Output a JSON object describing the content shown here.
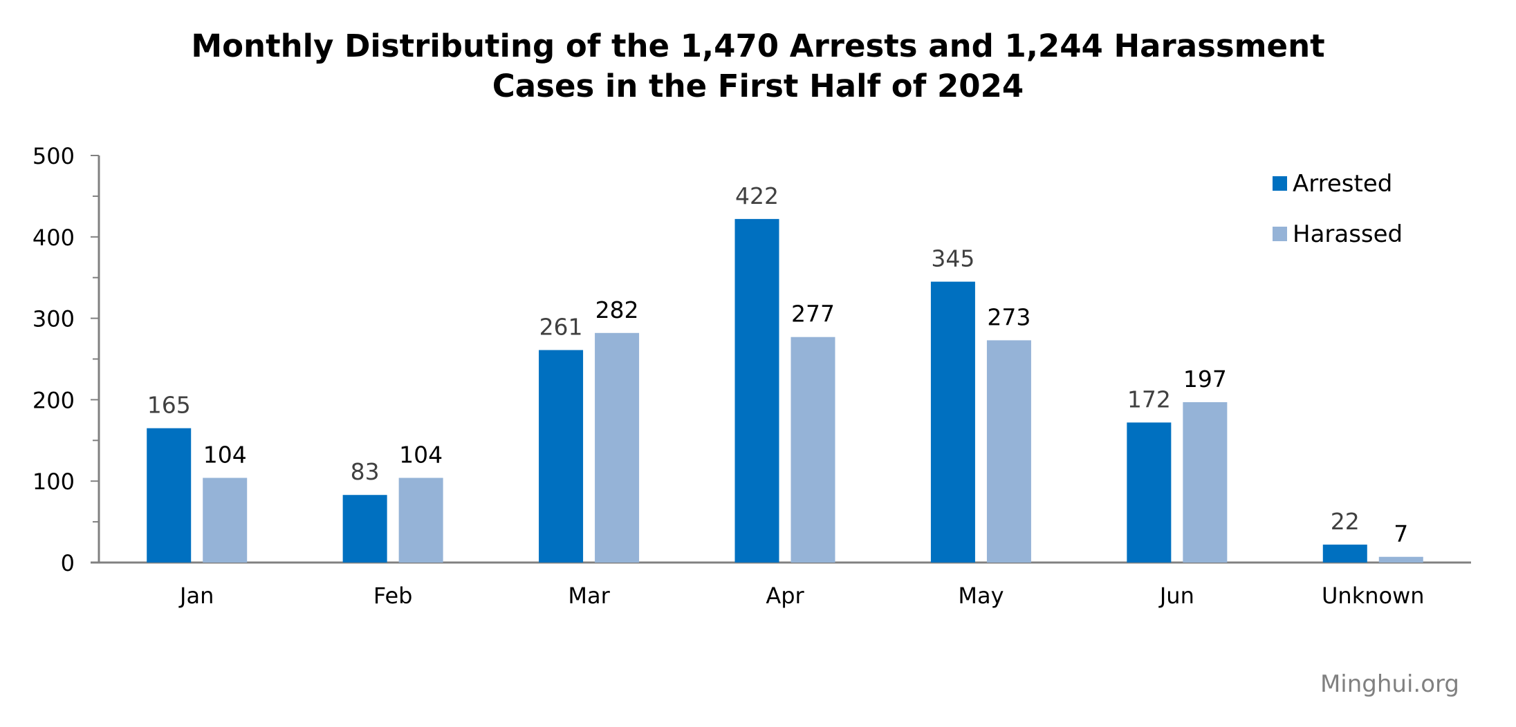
{
  "chart_data": {
    "type": "bar",
    "title": "Monthly Distributing of the 1,470 Arrests and 1,244 Harassment Cases in the First Half of 2024",
    "title_lines": [
      "Monthly Distributing of the 1,470 Arrests and 1,244 Harassment",
      "Cases in the First Half of 2024"
    ],
    "categories": [
      "Jan",
      "Feb",
      "Mar",
      "Apr",
      "May",
      "Jun",
      "Unknown"
    ],
    "series": [
      {
        "name": "Arrested",
        "color": "#0070C0",
        "label_color": "#404040",
        "values": [
          165,
          83,
          261,
          422,
          345,
          172,
          22
        ]
      },
      {
        "name": "Harassed",
        "color": "#95B3D7",
        "label_color": "#000000",
        "values": [
          104,
          104,
          282,
          277,
          273,
          197,
          7
        ]
      }
    ],
    "xlabel": "",
    "ylabel": "",
    "ylim": [
      0,
      500
    ],
    "yticks": [
      0,
      100,
      200,
      300,
      400,
      500
    ],
    "minor_ytick_step": 50,
    "grid": false,
    "data_labels": true,
    "legend": {
      "placement": "top-right",
      "entries": [
        "Arrested",
        "Harassed"
      ]
    },
    "axis_color": "#808080"
  },
  "watermark": "Minghui.org"
}
